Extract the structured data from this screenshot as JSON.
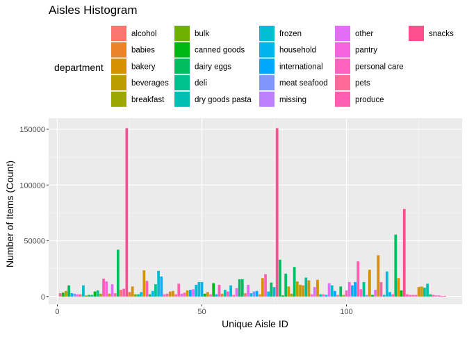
{
  "chart_data": {
    "type": "bar",
    "title": "Aisles Histogram",
    "xlabel": "Unique Aisle ID",
    "ylabel": "Number of Items (Count)",
    "xlim": [
      -3,
      140
    ],
    "ylim": [
      -7000,
      160000
    ],
    "xticks": [
      0,
      50,
      100
    ],
    "yticks": [
      0,
      50000,
      100000,
      150000
    ],
    "ytick_labels": [
      "0",
      "50000",
      "100000",
      "150000"
    ],
    "grid": true,
    "legend": {
      "title": "department",
      "placement": "top",
      "columns": [
        [
          "alcohol",
          "babies",
          "bakery",
          "beverages",
          "breakfast"
        ],
        [
          "bulk",
          "canned goods",
          "dairy eggs",
          "deli",
          "dry goods pasta"
        ],
        [
          "frozen",
          "household",
          "international",
          "meat seafood",
          "missing"
        ],
        [
          "other",
          "pantry",
          "personal care",
          "pets",
          "produce"
        ],
        [
          "snacks"
        ]
      ]
    },
    "colors": {
      "alcohol": "#F8766D",
      "babies": "#E9842C",
      "bakery": "#D69100",
      "beverages": "#BC9D00",
      "breakfast": "#9CA700",
      "bulk": "#6FB000",
      "canned goods": "#00B813",
      "dairy eggs": "#00BD61",
      "deli": "#00C08E",
      "dry goods pasta": "#00C0B4",
      "frozen": "#00BDD4",
      "household": "#00B5EE",
      "international": "#00A7FF",
      "meat seafood": "#7F96FF",
      "missing": "#BC81FF",
      "other": "#E26EF7",
      "pantry": "#F863DF",
      "personal care": "#FF62BF",
      "pets": "#FF6A9A",
      "produce": "#FF5FB0",
      "snacks": "#FF4F8F"
    },
    "x": [
      1,
      2,
      3,
      4,
      5,
      6,
      7,
      8,
      9,
      10,
      11,
      12,
      13,
      14,
      15,
      16,
      17,
      18,
      19,
      20,
      21,
      22,
      23,
      24,
      25,
      26,
      27,
      28,
      29,
      30,
      31,
      32,
      33,
      34,
      35,
      36,
      37,
      38,
      39,
      40,
      41,
      42,
      43,
      44,
      45,
      46,
      47,
      48,
      49,
      50,
      51,
      52,
      53,
      54,
      55,
      56,
      57,
      58,
      59,
      60,
      61,
      62,
      63,
      64,
      65,
      66,
      67,
      68,
      69,
      70,
      71,
      72,
      73,
      74,
      75,
      76,
      77,
      78,
      79,
      80,
      81,
      82,
      83,
      84,
      85,
      86,
      87,
      88,
      89,
      90,
      91,
      92,
      93,
      94,
      95,
      96,
      97,
      98,
      99,
      100,
      101,
      102,
      103,
      104,
      105,
      106,
      107,
      108,
      109,
      110,
      111,
      112,
      113,
      114,
      115,
      116,
      117,
      118,
      119,
      120,
      121,
      122,
      123,
      124,
      125,
      126,
      127,
      128,
      129,
      130,
      131,
      132,
      133,
      134
    ],
    "values": [
      3000,
      3500,
      5000,
      10000,
      3000,
      2500,
      2000,
      2000,
      10000,
      1000,
      1500,
      1500,
      4500,
      5500,
      2500,
      16000,
      13500,
      2500,
      11000,
      3000,
      42000,
      6000,
      7000,
      151000,
      4000,
      9000,
      2000,
      2000,
      4000,
      23500,
      14000,
      2000,
      5000,
      11000,
      23000,
      18000,
      2000,
      2500,
      4500,
      5000,
      2000,
      11500,
      2500,
      3500,
      5500,
      6000,
      6500,
      10500,
      13000,
      13000,
      2500,
      4000,
      2000,
      12000,
      2000,
      10500,
      2500,
      6000,
      4500,
      10000,
      1500,
      7500,
      15500,
      15500,
      3000,
      10500,
      3000,
      4500,
      5000,
      2000,
      16500,
      20000,
      4500,
      12500,
      8500,
      151000,
      33000,
      1000,
      20500,
      9000,
      2500,
      26500,
      13500,
      10500,
      10000,
      17000,
      14500,
      2000,
      8500,
      15000,
      2000,
      2000,
      1500,
      12000,
      10000,
      5000,
      1500,
      9000,
      1500,
      5500,
      13000,
      10000,
      13000,
      31500,
      6500,
      13000,
      1500,
      24000,
      1500,
      6000,
      37000,
      13000,
      1500,
      22500,
      4000,
      2000,
      55500,
      16500,
      5500,
      78500,
      2000,
      1500,
      1500,
      1500,
      8500,
      9000,
      8000,
      11500,
      2000,
      1500,
      1000,
      1000,
      500,
      500
    ],
    "bar_departments": [
      "pets",
      "canned goods",
      "beverages",
      "dairy eggs",
      "household",
      "meat seafood",
      "pantry",
      "alcohol",
      "frozen",
      "bulk",
      "dairy eggs",
      "deli",
      "canned goods",
      "deli",
      "breakfast",
      "produce",
      "pantry",
      "beverages",
      "other",
      "pets",
      "dairy eggs",
      "alcohol",
      "produce",
      "snacks",
      "babies",
      "bakery",
      "bulk",
      "deli",
      "frozen",
      "bakery",
      "produce",
      "dairy eggs",
      "household",
      "deli",
      "frozen",
      "household",
      "personal care",
      "pets",
      "bakery",
      "bakery",
      "pets",
      "produce",
      "other",
      "personal care",
      "bakery",
      "international",
      "other",
      "frozen",
      "frozen",
      "household",
      "canned goods",
      "bakery",
      "personal care",
      "canned goods",
      "international",
      "produce",
      "babies",
      "dry goods pasta",
      "personal care",
      "frozen",
      "pets",
      "other",
      "dairy eggs",
      "dairy eggs",
      "alcohol",
      "other",
      "frozen",
      "meat seafood",
      "international",
      "babies",
      "bakery",
      "produce",
      "household",
      "dairy eggs",
      "frozen",
      "snacks",
      "dairy eggs",
      "canned goods",
      "dairy eggs",
      "bakery",
      "breakfast",
      "dairy eggs",
      "beverages",
      "beverages",
      "bakery",
      "deli",
      "bakery",
      "pantry",
      "other",
      "bakery",
      "dry goods pasta",
      "personal care",
      "household",
      "other",
      "frozen",
      "international",
      "pets",
      "dairy eggs",
      "breakfast",
      "personal care",
      "pantry",
      "household",
      "international",
      "produce",
      "personal care",
      "deli",
      "meat seafood",
      "bakery",
      "canned goods",
      "other",
      "bakery",
      "produce",
      "dry goods pasta",
      "frozen",
      "household",
      "pets",
      "dairy eggs",
      "bakery",
      "canned goods",
      "snacks",
      "produce",
      "produce",
      "pets",
      "personal care",
      "bakery",
      "beverages",
      "deli",
      "dry goods pasta",
      "dairy eggs",
      "produce",
      "produce",
      "personal care",
      "pets",
      "snacks"
    ]
  }
}
